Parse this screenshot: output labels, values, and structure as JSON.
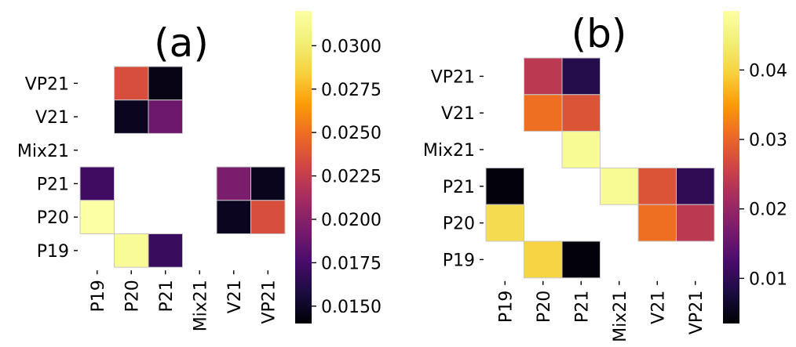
{
  "chart_data": [
    {
      "type": "heatmap",
      "title": "(a)",
      "x_categories": [
        "P19",
        "P20",
        "P21",
        "Mix21",
        "V21",
        "VP21"
      ],
      "y_categories": [
        "VP21",
        "V21",
        "Mix21",
        "P21",
        "P20",
        "P19"
      ],
      "cells": [
        {
          "row": "VP21",
          "col": "P20",
          "value": 0.0235
        },
        {
          "row": "VP21",
          "col": "P21",
          "value": 0.0145
        },
        {
          "row": "V21",
          "col": "P20",
          "value": 0.0148
        },
        {
          "row": "V21",
          "col": "P21",
          "value": 0.019
        },
        {
          "row": "P21",
          "col": "P19",
          "value": 0.0172
        },
        {
          "row": "P21",
          "col": "V21",
          "value": 0.0195
        },
        {
          "row": "P21",
          "col": "VP21",
          "value": 0.0147
        },
        {
          "row": "P20",
          "col": "P19",
          "value": 0.032
        },
        {
          "row": "P20",
          "col": "V21",
          "value": 0.0148
        },
        {
          "row": "P20",
          "col": "VP21",
          "value": 0.0235
        },
        {
          "row": "P19",
          "col": "P20",
          "value": 0.0315
        },
        {
          "row": "P19",
          "col": "P21",
          "value": 0.017
        }
      ],
      "colorbar": {
        "min": 0.014,
        "max": 0.032,
        "ticks": [
          "0.0150",
          "0.0175",
          "0.0200",
          "0.0225",
          "0.0250",
          "0.0275",
          "0.0300"
        ],
        "tick_values": [
          0.015,
          0.0175,
          0.02,
          0.0225,
          0.025,
          0.0275,
          0.03
        ],
        "colormap": "inferno"
      }
    },
    {
      "type": "heatmap",
      "title": "(b)",
      "x_categories": [
        "P19",
        "P20",
        "P21",
        "Mix21",
        "V21",
        "VP21"
      ],
      "y_categories": [
        "VP21",
        "V21",
        "Mix21",
        "P21",
        "P20",
        "P19"
      ],
      "cells": [
        {
          "row": "VP21",
          "col": "P20",
          "value": 0.024
        },
        {
          "row": "VP21",
          "col": "P21",
          "value": 0.009
        },
        {
          "row": "V21",
          "col": "P20",
          "value": 0.031
        },
        {
          "row": "V21",
          "col": "P21",
          "value": 0.028
        },
        {
          "row": "Mix21",
          "col": "P21",
          "value": 0.047
        },
        {
          "row": "P21",
          "col": "P19",
          "value": 0.004
        },
        {
          "row": "P21",
          "col": "Mix21",
          "value": 0.047
        },
        {
          "row": "P21",
          "col": "V21",
          "value": 0.028
        },
        {
          "row": "P21",
          "col": "VP21",
          "value": 0.01
        },
        {
          "row": "P20",
          "col": "P19",
          "value": 0.041
        },
        {
          "row": "P20",
          "col": "V21",
          "value": 0.031
        },
        {
          "row": "P20",
          "col": "VP21",
          "value": 0.024
        },
        {
          "row": "P19",
          "col": "P20",
          "value": 0.04
        },
        {
          "row": "P19",
          "col": "P21",
          "value": 0.004
        }
      ],
      "colorbar": {
        "min": 0.0035,
        "max": 0.0485,
        "ticks": [
          "0.01",
          "0.02",
          "0.03",
          "0.04"
        ],
        "tick_values": [
          0.01,
          0.02,
          0.03,
          0.04
        ],
        "colormap": "inferno"
      }
    }
  ]
}
